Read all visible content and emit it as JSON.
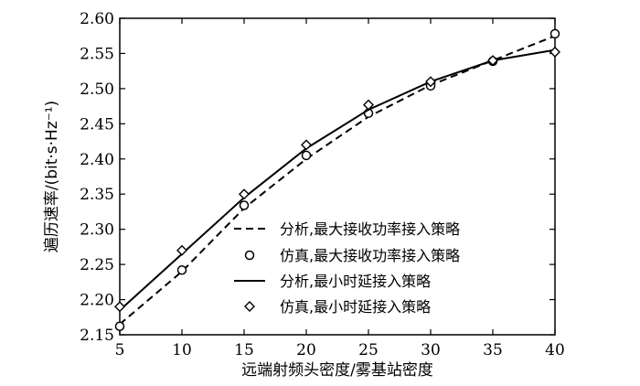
{
  "chart_data": {
    "type": "line",
    "xlabel": "远端射频头密度/雾基站密度",
    "ylabel": "遍历速率/(bit·s·Hz⁻¹)",
    "xlim": [
      5,
      40
    ],
    "ylim": [
      2.15,
      2.6
    ],
    "x_ticks": [
      5,
      10,
      15,
      20,
      25,
      30,
      35,
      40
    ],
    "y_ticks": [
      2.15,
      2.2,
      2.25,
      2.3,
      2.35,
      2.4,
      2.45,
      2.5,
      2.55,
      2.6
    ],
    "y_tick_labels": [
      "2.15",
      "2.20",
      "2.25",
      "2.30",
      "2.35",
      "2.40",
      "2.45",
      "2.50",
      "2.55",
      "2.60"
    ],
    "grid": false,
    "legend_position": "lower-right",
    "series": [
      {
        "name": "分析,最大接收功率接入策略",
        "style": "dashed-line",
        "color": "#000000",
        "x": [
          5,
          10,
          15,
          20,
          25,
          30,
          35,
          40
        ],
        "values": [
          2.165,
          2.24,
          2.33,
          2.4,
          2.46,
          2.505,
          2.54,
          2.575
        ]
      },
      {
        "name": "仿真,最大接收功率接入策略",
        "style": "circle-marker",
        "color": "#000000",
        "x": [
          5,
          10,
          15,
          20,
          25,
          30,
          35,
          40
        ],
        "values": [
          2.162,
          2.242,
          2.334,
          2.405,
          2.465,
          2.504,
          2.539,
          2.578
        ]
      },
      {
        "name": "分析,最小时延接入策略",
        "style": "solid-line",
        "color": "#000000",
        "x": [
          5,
          10,
          15,
          20,
          25,
          30,
          35,
          40
        ],
        "values": [
          2.185,
          2.265,
          2.345,
          2.415,
          2.47,
          2.51,
          2.54,
          2.555
        ]
      },
      {
        "name": "仿真,最小时延接入策略",
        "style": "diamond-marker",
        "color": "#000000",
        "x": [
          5,
          10,
          15,
          20,
          25,
          30,
          35,
          40
        ],
        "values": [
          2.19,
          2.27,
          2.35,
          2.42,
          2.477,
          2.51,
          2.54,
          2.552
        ]
      }
    ]
  }
}
